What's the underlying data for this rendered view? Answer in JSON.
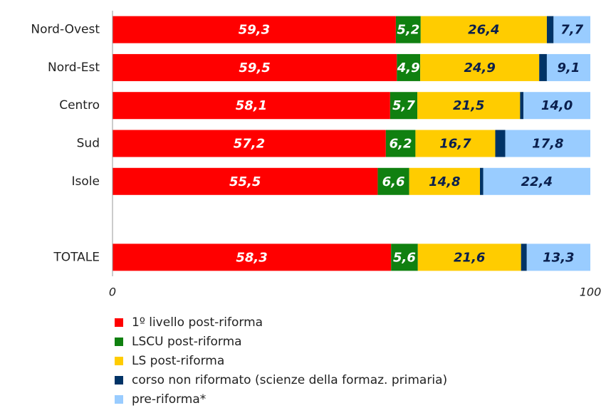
{
  "chart_data": {
    "type": "stacked-hbar",
    "categories": [
      "Nord-Ovest",
      "Nord-Est",
      "Centro",
      "Sud",
      "Isole",
      null,
      "TOTALE"
    ],
    "series": [
      {
        "name": "1º livello post-riforma",
        "color": "#ff0000",
        "label_color": "#ffffff",
        "values": [
          59.3,
          59.5,
          58.1,
          57.2,
          55.5,
          null,
          58.3
        ],
        "value_labels": [
          "59,3",
          "59,5",
          "58,1",
          "57,2",
          "55,5",
          null,
          "58,3"
        ]
      },
      {
        "name": "LSCU post-riforma",
        "color": "#108010",
        "label_color": "#ffffff",
        "values": [
          5.2,
          4.9,
          5.7,
          6.2,
          6.6,
          null,
          5.6
        ],
        "value_labels": [
          "5,2",
          "4,9",
          "5,7",
          "6,2",
          "6,6",
          null,
          "5,6"
        ]
      },
      {
        "name": "LS post-riforma",
        "color": "#ffcc00",
        "label_color": "#0a1f4d",
        "values": [
          26.4,
          24.9,
          21.5,
          16.7,
          14.8,
          null,
          21.6
        ],
        "value_labels": [
          "26,4",
          "24,9",
          "21,5",
          "16,7",
          "14,8",
          null,
          "21,6"
        ]
      },
      {
        "name": "corso non riformato (scienze della formaz. primaria)",
        "color": "#003366",
        "values": [
          1.4,
          1.6,
          0.7,
          2.1,
          0.7,
          null,
          1.2
        ]
      },
      {
        "name": "pre-riforma*",
        "color": "#99ccff",
        "label_color": "#0a1f4d",
        "values": [
          7.7,
          9.1,
          14.0,
          17.8,
          22.4,
          null,
          13.3
        ],
        "value_labels": [
          "7,7",
          "9,1",
          "14,0",
          "17,8",
          "22,4",
          null,
          "13,3"
        ]
      }
    ],
    "xlim": [
      0,
      100
    ],
    "xticks": [
      0,
      100
    ]
  }
}
